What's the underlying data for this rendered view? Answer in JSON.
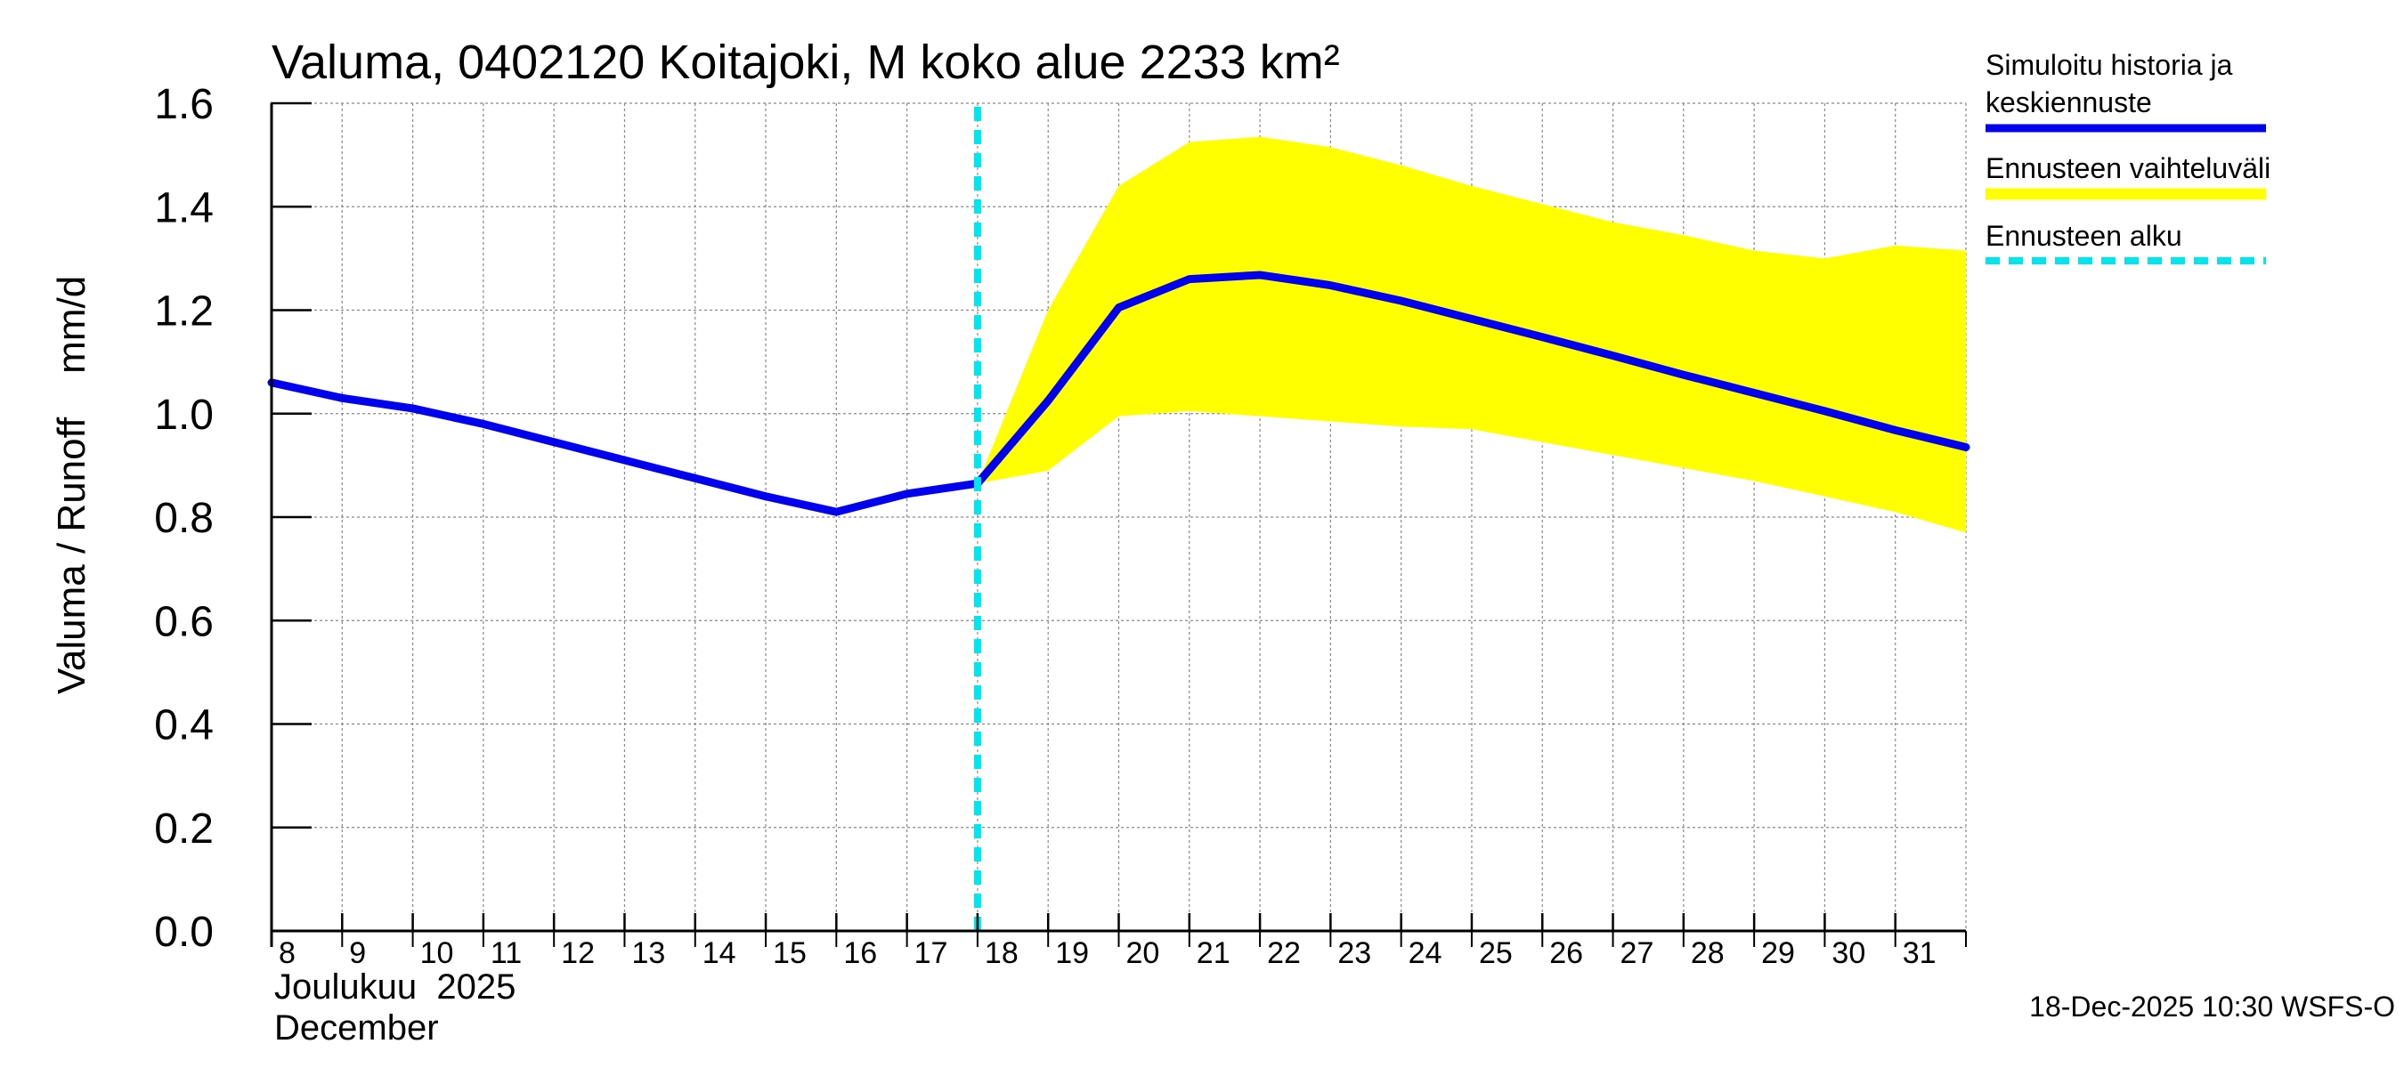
{
  "chart_data": {
    "type": "line",
    "title": "Valuma, 0402120 Koitajoki, M koko alue 2233 km²",
    "ylabel": "Valuma / Runoff    mm/d",
    "ylim": [
      0.0,
      1.6
    ],
    "yticks": [
      "0.0",
      "0.2",
      "0.4",
      "0.6",
      "0.8",
      "1.0",
      "1.2",
      "1.4",
      "1.6"
    ],
    "ytick_values": [
      0.0,
      0.2,
      0.4,
      0.6,
      0.8,
      1.0,
      1.2,
      1.4,
      1.6
    ],
    "xlim": [
      8,
      32
    ],
    "x_days": [
      8,
      9,
      10,
      11,
      12,
      13,
      14,
      15,
      16,
      17,
      18,
      19,
      20,
      21,
      22,
      23,
      24,
      25,
      26,
      27,
      28,
      29,
      30,
      31
    ],
    "x_labels": [
      "8",
      "9",
      "10",
      "11",
      "12",
      "13",
      "14",
      "15",
      "16",
      "17",
      "18",
      "19",
      "20",
      "21",
      "22",
      "23",
      "24",
      "25",
      "26",
      "27",
      "28",
      "29",
      "30",
      "31"
    ],
    "month_label_fi": "Joulukuu  2025",
    "month_label_en": "December",
    "forecast_start_x": 18.0,
    "series": [
      {
        "name": "Simuloitu historia ja keskiennuste",
        "color": "#0000ee",
        "x": [
          8,
          9,
          10,
          11,
          12,
          13,
          14,
          15,
          16,
          17,
          18,
          19,
          20,
          21,
          22,
          23,
          24,
          25,
          26,
          27,
          28,
          29,
          30,
          31,
          32
        ],
        "values": [
          1.06,
          1.03,
          1.01,
          0.98,
          0.945,
          0.91,
          0.875,
          0.84,
          0.81,
          0.845,
          0.865,
          1.025,
          1.205,
          1.26,
          1.268,
          1.248,
          1.218,
          1.183,
          1.148,
          1.112,
          1.075,
          1.04,
          1.005,
          0.968,
          0.935
        ]
      }
    ],
    "band": {
      "name": "Ennusteen vaihteluväli",
      "color": "#ffff00",
      "x": [
        18,
        19,
        20,
        21,
        22,
        23,
        24,
        25,
        26,
        27,
        28,
        29,
        30,
        31,
        32
      ],
      "upper": [
        0.865,
        1.2,
        1.44,
        1.525,
        1.535,
        1.515,
        1.48,
        1.44,
        1.405,
        1.37,
        1.345,
        1.315,
        1.3,
        1.325,
        1.315
      ],
      "lower": [
        0.865,
        0.89,
        0.995,
        1.005,
        0.995,
        0.985,
        0.975,
        0.97,
        0.945,
        0.92,
        0.895,
        0.87,
        0.84,
        0.81,
        0.77
      ]
    },
    "legend": [
      {
        "label_line1": "Simuloitu historia ja",
        "label_line2": "keskiennuste",
        "color": "#0000ee",
        "style": "solid"
      },
      {
        "label_line1": "Ennusteen vaihteluväli",
        "label_line2": "",
        "color": "#ffff00",
        "style": "solid"
      },
      {
        "label_line1": "Ennusteen alku",
        "label_line2": "",
        "color": "#00e5ee",
        "style": "dashed"
      }
    ],
    "footer": "18-Dec-2025 10:30 WSFS-O"
  }
}
